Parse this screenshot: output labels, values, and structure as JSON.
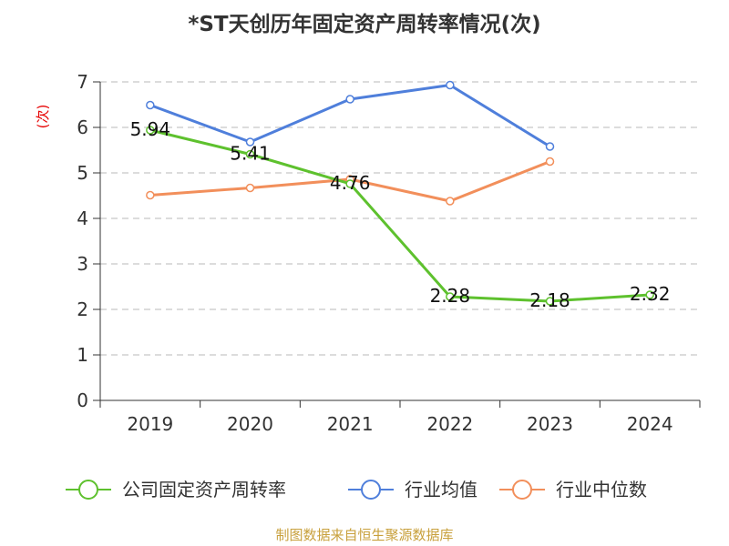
{
  "chart_data": {
    "type": "line",
    "title": "*ST天创历年固定资产周转率情况(次)",
    "ylabel": "(次)",
    "xlabel": "",
    "categories": [
      "2019",
      "2020",
      "2021",
      "2022",
      "2023",
      "2024"
    ],
    "ylim": [
      0,
      7
    ],
    "yticks": [
      0,
      1,
      2,
      3,
      4,
      5,
      6,
      7
    ],
    "grid": "horizontal dashed",
    "legend_position": "bottom",
    "series": [
      {
        "name": "公司固定资产周转率",
        "color": "#5ec12e",
        "values": [
          5.94,
          5.41,
          4.76,
          2.28,
          2.18,
          2.32
        ],
        "labels": [
          "5.94",
          "5.41",
          "4.76",
          "2.28",
          "2.18",
          "2.32"
        ]
      },
      {
        "name": "行业均值",
        "color": "#4f7fdb",
        "values": [
          6.49,
          5.68,
          6.62,
          6.93,
          5.58,
          null
        ]
      },
      {
        "name": "行业中位数",
        "color": "#f28f5b",
        "values": [
          4.51,
          4.67,
          4.86,
          4.38,
          5.25,
          null
        ]
      }
    ]
  },
  "source_note": "制图数据来自恒生聚源数据库"
}
